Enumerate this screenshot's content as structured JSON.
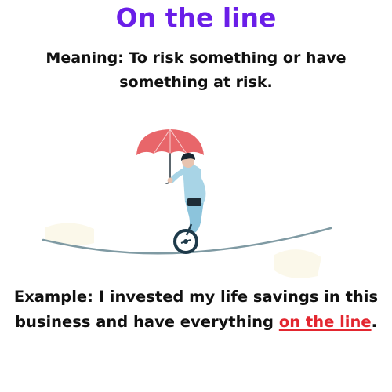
{
  "title": "On the line",
  "meaning": {
    "label": "Meaning:",
    "text": "To risk something or have something at risk."
  },
  "example": {
    "label": "Example:",
    "text_before": "I invested my life savings in this business and have everything",
    "highlight": "on the line",
    "text_after": "."
  },
  "illustration": {
    "name": "unicyclist-on-tightrope-with-umbrella",
    "colors": {
      "umbrella": "#e8666a",
      "shirt": "#a8d4e6",
      "trousers": "#8cc4dc",
      "rope": "#7f9aa3",
      "wheel": "#1e3a4a",
      "hair": "#1a2530",
      "skin": "#e8c4b0"
    }
  }
}
